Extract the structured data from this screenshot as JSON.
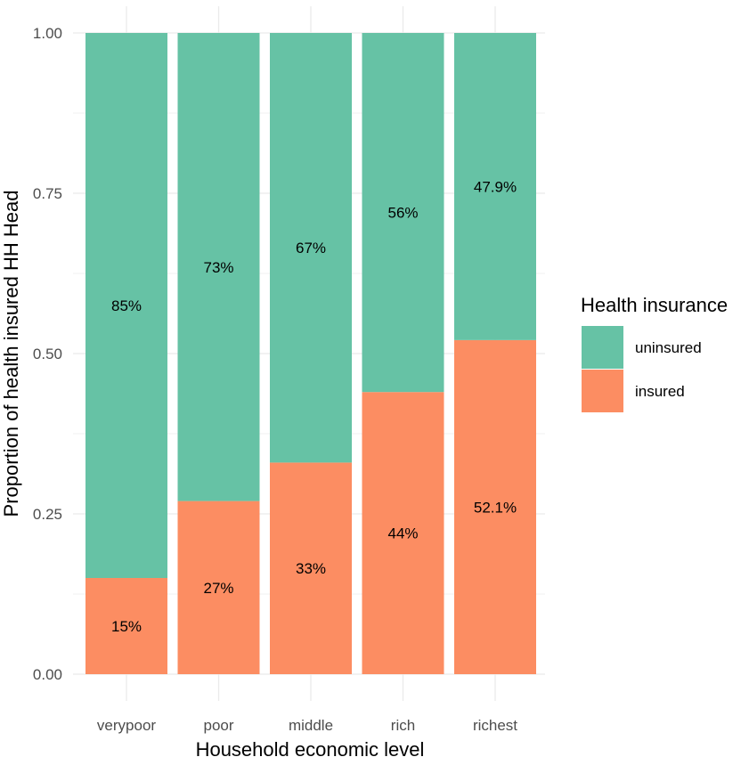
{
  "chart_data": {
    "type": "bar",
    "stacked": true,
    "categories": [
      "verypoor",
      "poor",
      "middle",
      "rich",
      "richest"
    ],
    "series": [
      {
        "name": "insured",
        "color": "#FC8D62",
        "values": [
          0.15,
          0.27,
          0.33,
          0.44,
          0.521
        ],
        "labels": [
          "15%",
          "27%",
          "33%",
          "44%",
          "52.1%"
        ]
      },
      {
        "name": "uninsured",
        "color": "#66C2A5",
        "values": [
          0.85,
          0.73,
          0.67,
          0.56,
          0.479
        ],
        "labels": [
          "85%",
          "73%",
          "67%",
          "56%",
          "47.9%"
        ]
      }
    ],
    "xlabel": "Household economic level",
    "ylabel": "Proportion of health insured HH Head",
    "ylim": [
      0,
      1
    ],
    "yticks": [
      0,
      0.25,
      0.5,
      0.75,
      1
    ],
    "ytick_labels": [
      "0.00",
      "0.25",
      "0.50",
      "0.75",
      "1.00"
    ],
    "grid": true,
    "legend": {
      "title": "Health insurance",
      "position": "right",
      "entries": [
        {
          "label": "uninsured",
          "color": "#66C2A5"
        },
        {
          "label": "insured",
          "color": "#FC8D62"
        }
      ]
    }
  }
}
